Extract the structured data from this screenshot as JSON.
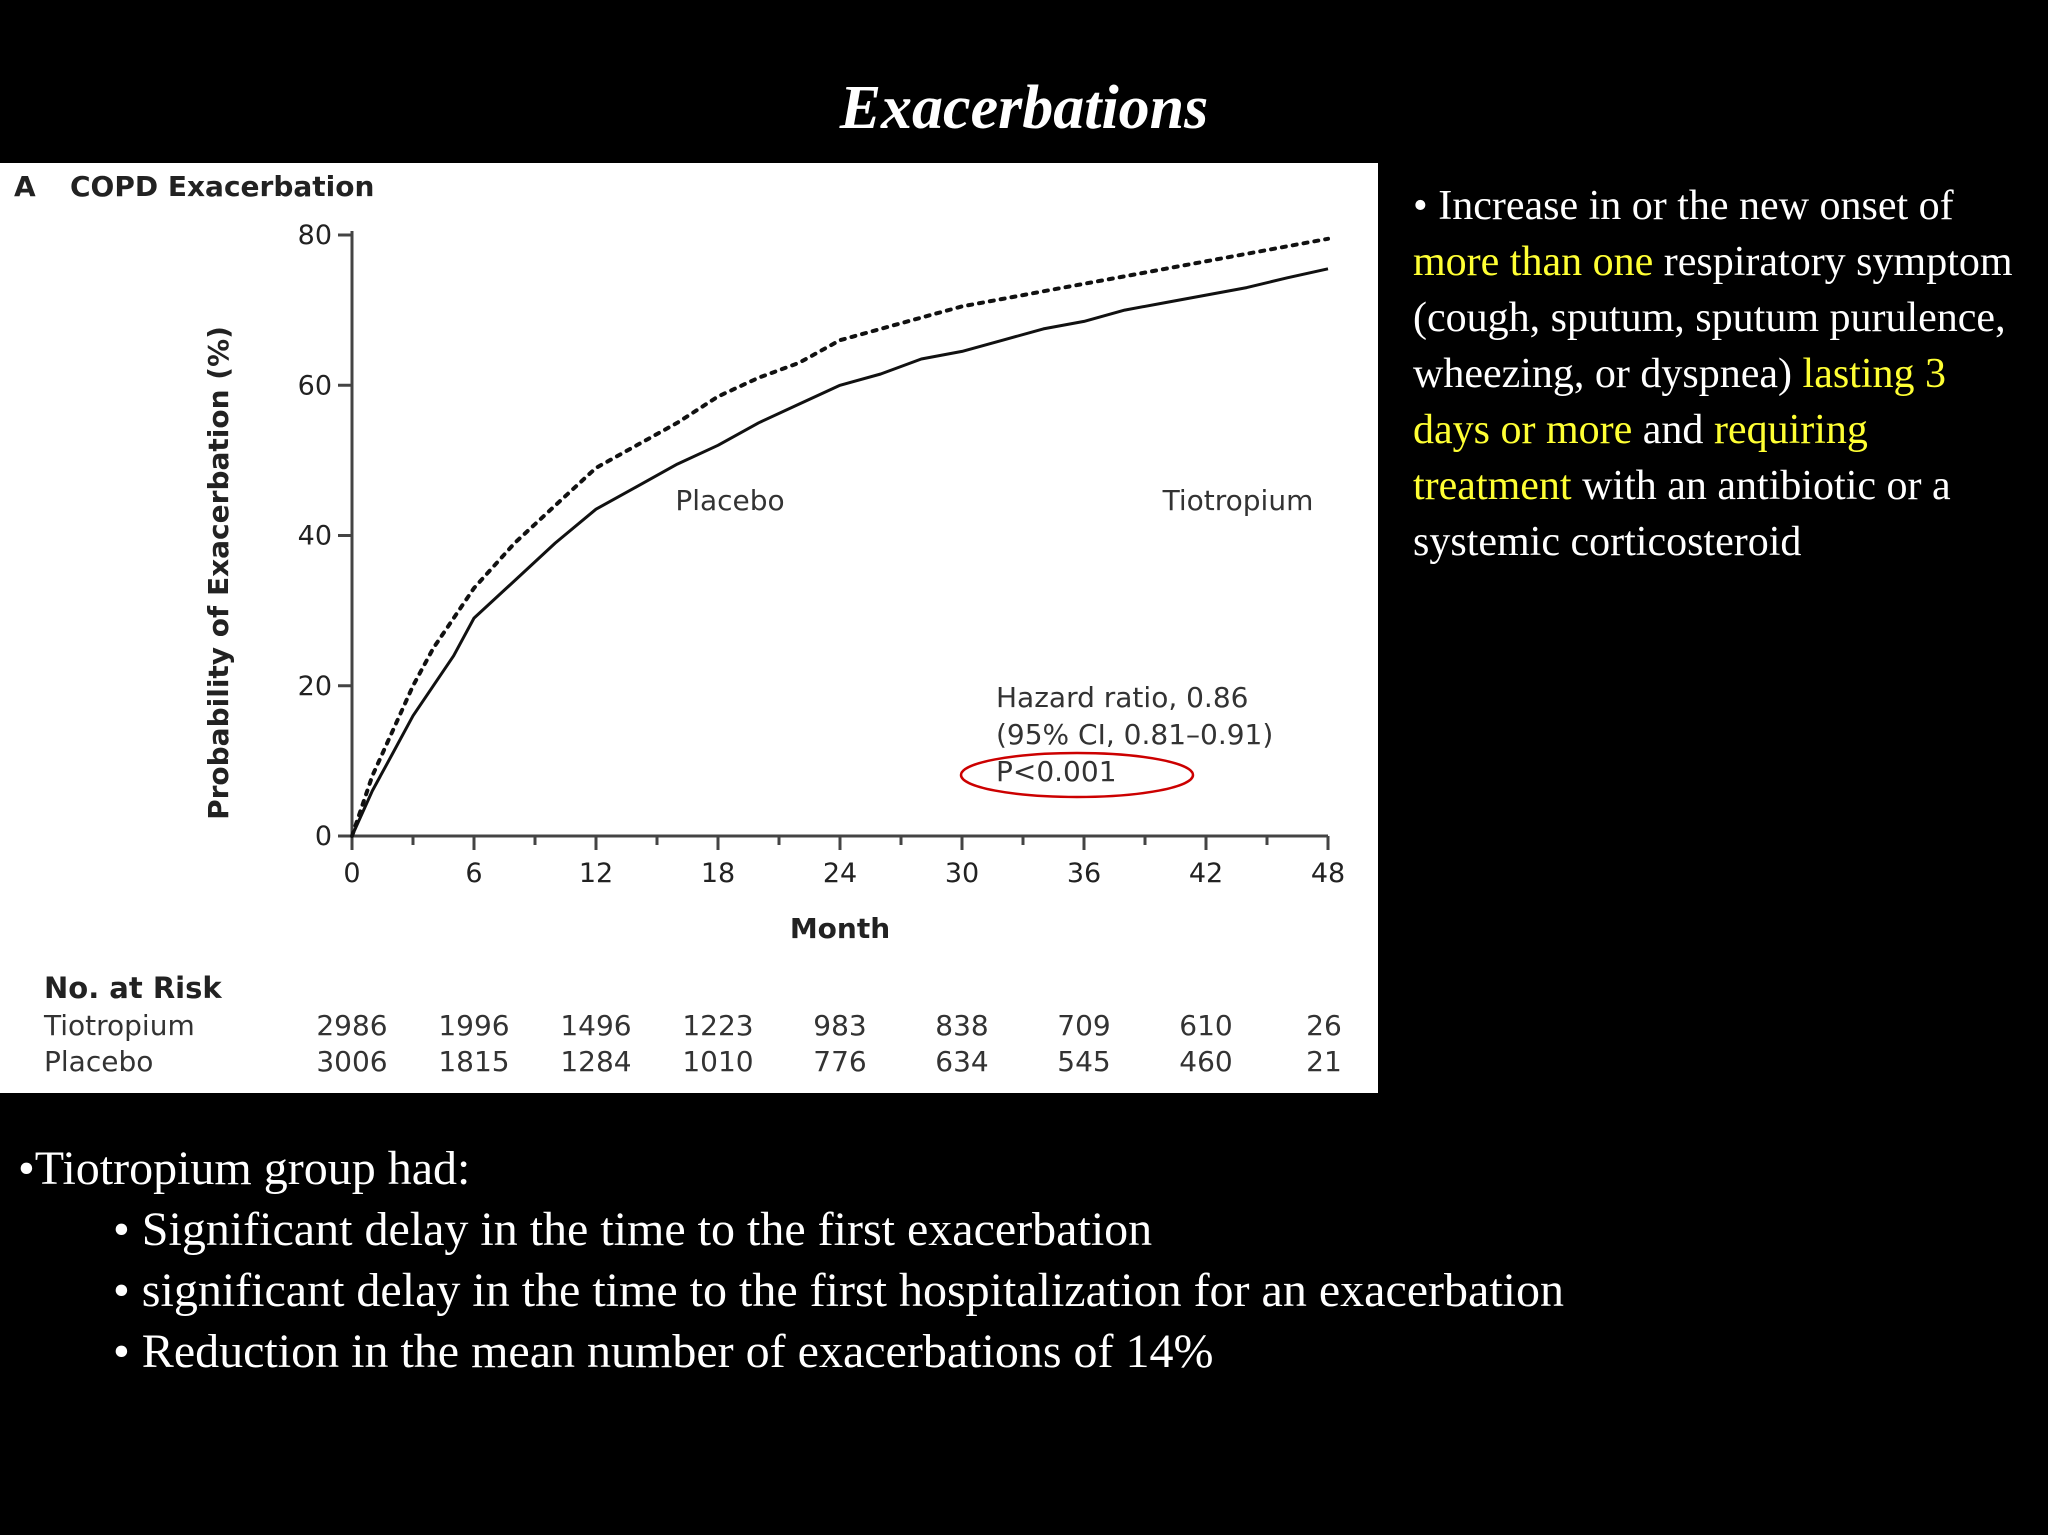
{
  "slide": {
    "title": "Exacerbations"
  },
  "chart_data": {
    "type": "line",
    "panel_letter": "A",
    "title": "COPD Exacerbation",
    "xlabel": "Month",
    "ylabel": "Probability of Exacerbation (%)",
    "xlim": [
      0,
      48
    ],
    "ylim": [
      0,
      80
    ],
    "x_ticks": [
      0,
      6,
      12,
      18,
      24,
      30,
      36,
      42,
      48
    ],
    "y_ticks": [
      0,
      20,
      40,
      60,
      80
    ],
    "grid": false,
    "series": [
      {
        "name": "Placebo",
        "line_style": "dotted",
        "x": [
          0,
          1,
          2,
          3,
          4,
          5,
          6,
          8,
          10,
          12,
          14,
          16,
          18,
          20,
          22,
          24,
          26,
          28,
          30,
          32,
          34,
          36,
          38,
          40,
          42,
          44,
          46,
          48
        ],
        "y": [
          0,
          8,
          14,
          20,
          25,
          29,
          33,
          39,
          44,
          49,
          52,
          55,
          58.5,
          61,
          63,
          66,
          67.5,
          69,
          70.5,
          71.5,
          72.5,
          73.5,
          74.5,
          75.5,
          76.5,
          77.5,
          78.5,
          79.5
        ]
      },
      {
        "name": "Tiotropium",
        "line_style": "solid",
        "x": [
          0,
          1,
          2,
          3,
          4,
          5,
          6,
          8,
          10,
          12,
          14,
          16,
          18,
          20,
          22,
          24,
          26,
          28,
          30,
          32,
          34,
          36,
          38,
          40,
          42,
          44,
          46,
          48
        ],
        "y": [
          0,
          6,
          11,
          16,
          20,
          24,
          29,
          34,
          39,
          43.5,
          46.5,
          49.5,
          52,
          55,
          57.5,
          60,
          61.5,
          63.5,
          64.5,
          66,
          67.5,
          68.5,
          70,
          71,
          72,
          73,
          74.3,
          75.5
        ]
      }
    ],
    "annotation": {
      "lines": [
        "Hazard ratio, 0.86",
        "(95% CI, 0.81–0.91)",
        "P<0.001"
      ],
      "circled_line": "P<0.001",
      "circle_color": "#cc0000"
    },
    "risk_table": {
      "heading": "No. at Risk",
      "rows": [
        {
          "label": "Tiotropium",
          "values": [
            "2986",
            "1996",
            "1496",
            "1223",
            "983",
            "838",
            "709",
            "610",
            "26"
          ]
        },
        {
          "label": "Placebo",
          "values": [
            "3006",
            "1815",
            "1284",
            "1010",
            "776",
            "634",
            "545",
            "460",
            "21"
          ]
        }
      ]
    }
  },
  "definition": {
    "segments": [
      {
        "text": "• Increase in or the new onset of ",
        "highlight": false
      },
      {
        "text": "more than one",
        "highlight": true
      },
      {
        "text": " respiratory symptom (cough, sputum, sputum purulence, wheezing, or dyspnea) ",
        "highlight": false
      },
      {
        "text": "lasting 3 days or more",
        "highlight": true
      },
      {
        "text": " and ",
        "highlight": false
      },
      {
        "text": "requiring treatment",
        "highlight": true
      },
      {
        "text": " with an antibiotic or a systemic corticosteroid",
        "highlight": false
      }
    ],
    "highlight_color": "#ffff33"
  },
  "summary": {
    "heading": "•Tiotropium  group had:",
    "items": [
      "• Significant delay in the time to the first exacerbation",
      "• significant delay in the time to the first hospitalization for an exacerbation",
      "• Reduction in the mean number of exacerbations of 14%"
    ]
  }
}
